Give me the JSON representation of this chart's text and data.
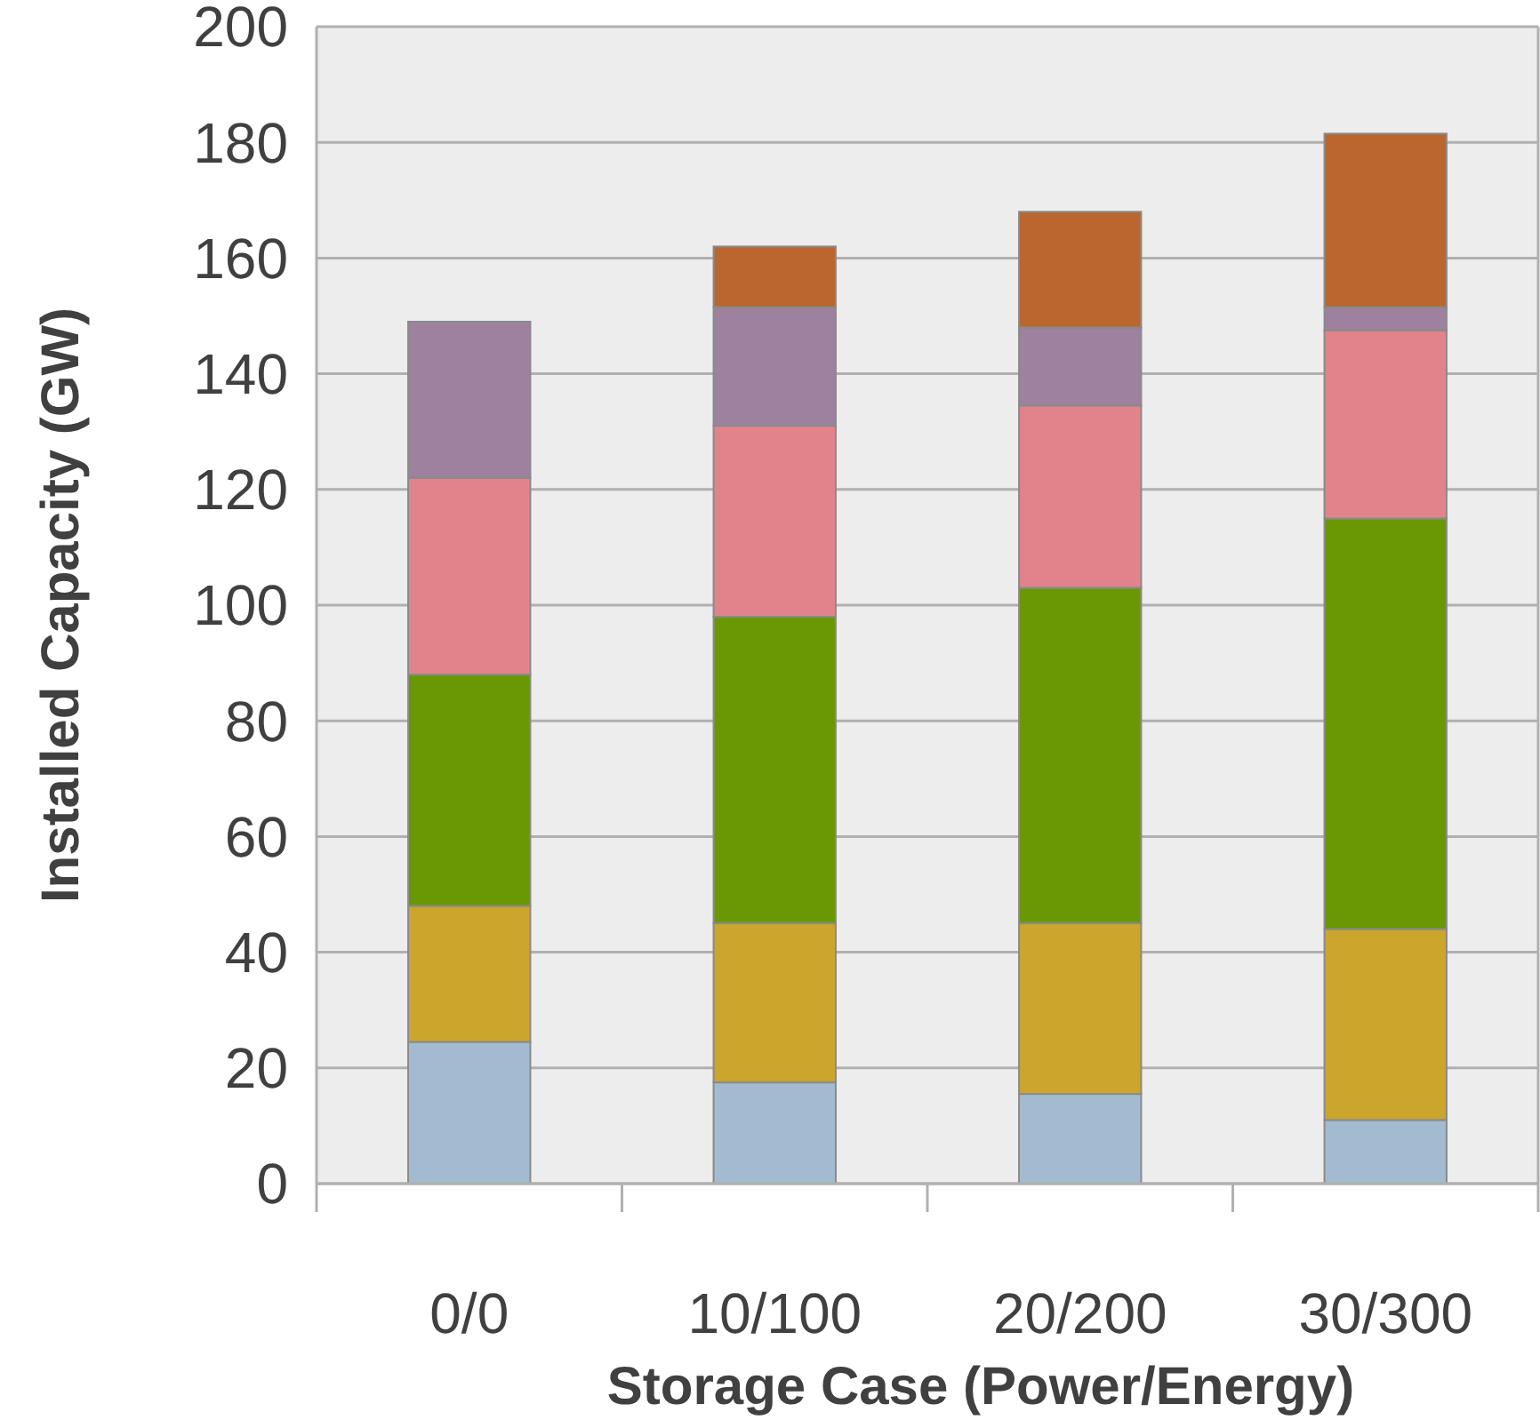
{
  "chart_data": {
    "type": "bar",
    "stacked": true,
    "xlabel": "Storage Case (Power/Energy)",
    "ylabel": "Installed Capacity (GW)",
    "categories": [
      "0/0",
      "10/100",
      "20/200",
      "30/300"
    ],
    "series": [
      {
        "color": "#a3bbd0",
        "values": [
          24.5,
          17.5,
          15.5,
          11
        ]
      },
      {
        "color": "#cba52c",
        "values": [
          23.5,
          27.5,
          29.5,
          33
        ]
      },
      {
        "color": "#6a9804",
        "values": [
          40,
          53,
          58,
          71
        ]
      },
      {
        "color": "#e2838b",
        "values": [
          34,
          33,
          31.5,
          32.5
        ]
      },
      {
        "color": "#9d819e",
        "values": [
          27,
          20.5,
          13.5,
          4
        ]
      },
      {
        "color": "#ba662e",
        "values": [
          0,
          10.5,
          20,
          30
        ]
      }
    ],
    "ylim": [
      0,
      200
    ],
    "yticks": [
      0,
      20,
      40,
      60,
      80,
      100,
      120,
      140,
      160,
      180,
      200
    ],
    "grid": "y"
  }
}
